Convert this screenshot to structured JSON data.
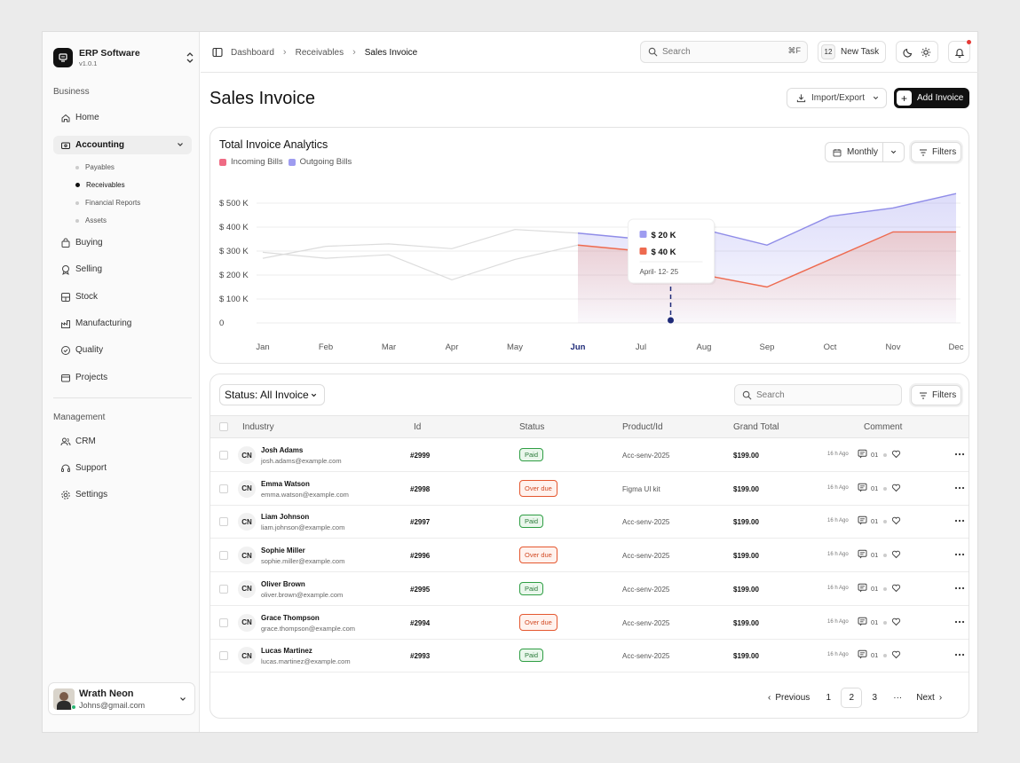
{
  "brand": {
    "name": "ERP Software",
    "version": "v1.0.1"
  },
  "sidebar": {
    "business_label": "Business",
    "management_label": "Management",
    "items": [
      {
        "label": "Home",
        "icon": "home-icon"
      },
      {
        "label": "Accounting",
        "icon": "wallet-icon",
        "active": true
      },
      {
        "label": "Buying",
        "icon": "bag-icon"
      },
      {
        "label": "Selling",
        "icon": "badge-icon"
      },
      {
        "label": "Stock",
        "icon": "box-icon"
      },
      {
        "label": "Manufacturing",
        "icon": "factory-icon"
      },
      {
        "label": "Quality",
        "icon": "check-circle-icon"
      },
      {
        "label": "Projects",
        "icon": "folder-icon"
      }
    ],
    "sub_items": [
      {
        "label": "Payables"
      },
      {
        "label": "Receivables",
        "active": true
      },
      {
        "label": "Financial Reports"
      },
      {
        "label": "Assets"
      }
    ],
    "management_items": [
      {
        "label": "CRM",
        "icon": "users-icon"
      },
      {
        "label": "Support",
        "icon": "headset-icon"
      },
      {
        "label": "Settings",
        "icon": "gear-icon"
      }
    ]
  },
  "user": {
    "name": "Wrath Neon",
    "email": "Johns@gmail.com"
  },
  "topbar": {
    "breadcrumb": [
      "Dashboard",
      "Receivables",
      "Sales Invoice"
    ],
    "search_placeholder": "Search",
    "search_shortcut": "⌘F",
    "task_count": "12",
    "new_task_label": "New Task"
  },
  "page": {
    "title": "Sales Invoice",
    "import_label": "Import/Export",
    "add_label": "Add Invoice"
  },
  "chart_card": {
    "title": "Total  Invoice Analytics",
    "period": "Monthly",
    "filters_label": "Filters"
  },
  "chart_data": {
    "type": "area",
    "title": "Total  Invoice Analytics",
    "categories": [
      "Jan",
      "Feb",
      "Mar",
      "Apr",
      "May",
      "Jun",
      "Jul",
      "Aug",
      "Sep",
      "Oct",
      "Nov",
      "Dec"
    ],
    "y_ticks": [
      "0",
      "$ 100 K",
      "$ 200 K",
      "$ 300 K",
      "$ 400 K",
      "$ 500 K"
    ],
    "ylim": [
      0,
      500
    ],
    "highlight_from": "Jun",
    "series": [
      {
        "name": "Incoming Bills",
        "color": "#ef6b84",
        "values": [
          295,
          270,
          285,
          180,
          265,
          325,
          300,
          200,
          150,
          265,
          380,
          380
        ]
      },
      {
        "name": "Outgoing Bills",
        "color": "#9e9cf0",
        "values": [
          270,
          320,
          330,
          310,
          390,
          375,
          350,
          390,
          325,
          445,
          480,
          540
        ]
      }
    ],
    "tooltip": {
      "values": [
        "$ 20 K",
        "$ 40 K"
      ],
      "date": "April- 12- 25"
    }
  },
  "table_card": {
    "status_label": "Status: All Invoice",
    "search_placeholder": "Search",
    "filters_label": "Filters",
    "headers": [
      "Industry",
      "Id",
      "Status",
      "Product/Id",
      "Grand Total",
      "Comment"
    ],
    "rows": [
      {
        "initials": "CN",
        "name": "Josh Adams",
        "email": "josh.adams@example.com",
        "id": "#2999",
        "status": "Paid",
        "product": "Acc-senv-2025",
        "total": "$199.00",
        "ago": "16 h Ago",
        "comments": "01"
      },
      {
        "initials": "CN",
        "name": "Emma Watson",
        "email": "emma.watson@example.com",
        "id": "#2998",
        "status": "Over due",
        "product": "Figma UI kit",
        "total": "$199.00",
        "ago": "16 h Ago",
        "comments": "01"
      },
      {
        "initials": "CN",
        "name": "Liam Johnson",
        "email": "liam.johnson@example.com",
        "id": "#2997",
        "status": "Paid",
        "product": "Acc-senv-2025",
        "total": "$199.00",
        "ago": "16 h Ago",
        "comments": "01"
      },
      {
        "initials": "CN",
        "name": "Sophie Miller",
        "email": "sophie.miller@example.com",
        "id": "#2996",
        "status": "Over due",
        "product": "Acc-senv-2025",
        "total": "$199.00",
        "ago": "16 h Ago",
        "comments": "01"
      },
      {
        "initials": "CN",
        "name": "Oliver Brown",
        "email": "oliver.brown@example.com",
        "id": "#2995",
        "status": "Paid",
        "product": "Acc-senv-2025",
        "total": "$199.00",
        "ago": "16 h Ago",
        "comments": "01"
      },
      {
        "initials": "CN",
        "name": "Grace Thompson",
        "email": "grace.thompson@example.com",
        "id": "#2994",
        "status": "Over due",
        "product": "Acc-senv-2025",
        "total": "$199.00",
        "ago": "16 h Ago",
        "comments": "01"
      },
      {
        "initials": "CN",
        "name": "Lucas Martinez",
        "email": "lucas.martinez@example.com",
        "id": "#2993",
        "status": "Paid",
        "product": "Acc-senv-2025",
        "total": "$199.00",
        "ago": "16 h Ago",
        "comments": "01"
      }
    ]
  },
  "pagination": {
    "previous": "Previous",
    "next": "Next",
    "pages": [
      "1",
      "2",
      "3"
    ],
    "current": "2",
    "ellipsis": "···"
  }
}
